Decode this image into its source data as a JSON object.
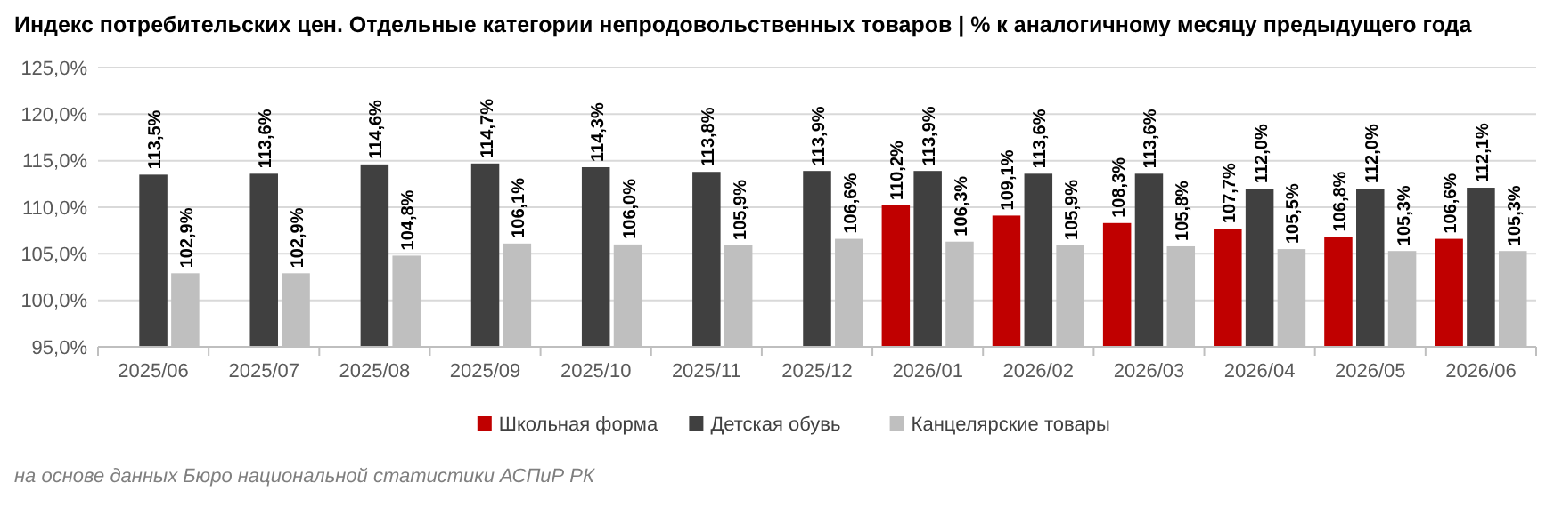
{
  "chart_data": {
    "type": "bar",
    "title": "Индекс потребительских цен. Отдельные категории непродовольственных товаров | % к аналогичному месяцу предыдущего года",
    "categories": [
      "2025/06",
      "2025/07",
      "2025/08",
      "2025/09",
      "2025/10",
      "2025/11",
      "2025/12",
      "2026/01",
      "2026/02",
      "2026/03",
      "2026/04",
      "2026/05",
      "2026/06"
    ],
    "series": [
      {
        "name": "Школьная форма",
        "color": "#c00000",
        "values": [
          null,
          null,
          null,
          null,
          null,
          null,
          null,
          110.2,
          109.1,
          108.3,
          107.7,
          106.8,
          106.6
        ],
        "value_labels": [
          null,
          null,
          null,
          null,
          null,
          null,
          null,
          "110,2%",
          "109,1%",
          "108,3%",
          "107,7%",
          "106,8%",
          "106,6%"
        ]
      },
      {
        "name": "Детская обувь",
        "color": "#404040",
        "values": [
          113.5,
          113.6,
          114.6,
          114.7,
          114.3,
          113.8,
          113.9,
          113.9,
          113.6,
          113.6,
          112.0,
          112.0,
          112.1
        ],
        "value_labels": [
          "113,5%",
          "113,6%",
          "114,6%",
          "114,7%",
          "114,3%",
          "113,8%",
          "113,9%",
          "113,9%",
          "113,6%",
          "113,6%",
          "112,0%",
          "112,0%",
          "112,1%"
        ]
      },
      {
        "name": "Канцелярские товары",
        "color": "#bfbfbf",
        "values": [
          102.9,
          102.9,
          104.8,
          106.1,
          106.0,
          105.9,
          106.6,
          106.3,
          105.9,
          105.8,
          105.5,
          105.3,
          105.3
        ],
        "value_labels": [
          "102,9%",
          "102,9%",
          "104,8%",
          "106,1%",
          "106,0%",
          "105,9%",
          "106,6%",
          "106,3%",
          "105,9%",
          "105,8%",
          "105,5%",
          "105,3%",
          "105,3%"
        ]
      }
    ],
    "ylim": [
      95,
      125
    ],
    "yticks": [
      {
        "value": 95,
        "label": "95,0%"
      },
      {
        "value": 100,
        "label": "100,0%"
      },
      {
        "value": 105,
        "label": "105,0%"
      },
      {
        "value": 110,
        "label": "110,0%"
      },
      {
        "value": 115,
        "label": "115,0%"
      },
      {
        "value": 120,
        "label": "120,0%"
      },
      {
        "value": 125,
        "label": "125,0%"
      }
    ],
    "grid": "y",
    "legend": "bottom",
    "annotations": [
      "на основе данных Бюро национальной статистики АСПиР РК"
    ]
  }
}
